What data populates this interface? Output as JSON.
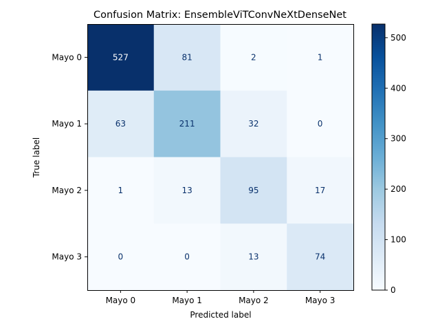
{
  "chart_data": {
    "type": "heatmap",
    "title": "Confusion Matrix: EnsembleViTConvNeXtDenseNet",
    "xlabel": "Predicted label",
    "ylabel": "True label",
    "x_categories": [
      "Mayo 0",
      "Mayo 1",
      "Mayo 2",
      "Mayo 3"
    ],
    "y_categories": [
      "Mayo 0",
      "Mayo 1",
      "Mayo 2",
      "Mayo 3"
    ],
    "values": [
      [
        527,
        81,
        2,
        1
      ],
      [
        63,
        211,
        32,
        0
      ],
      [
        1,
        13,
        95,
        17
      ],
      [
        0,
        0,
        13,
        74
      ]
    ],
    "colormap": "Blues",
    "colorbar": {
      "range": [
        0,
        527
      ],
      "ticks": [
        0,
        100,
        200,
        300,
        400,
        500
      ]
    }
  }
}
